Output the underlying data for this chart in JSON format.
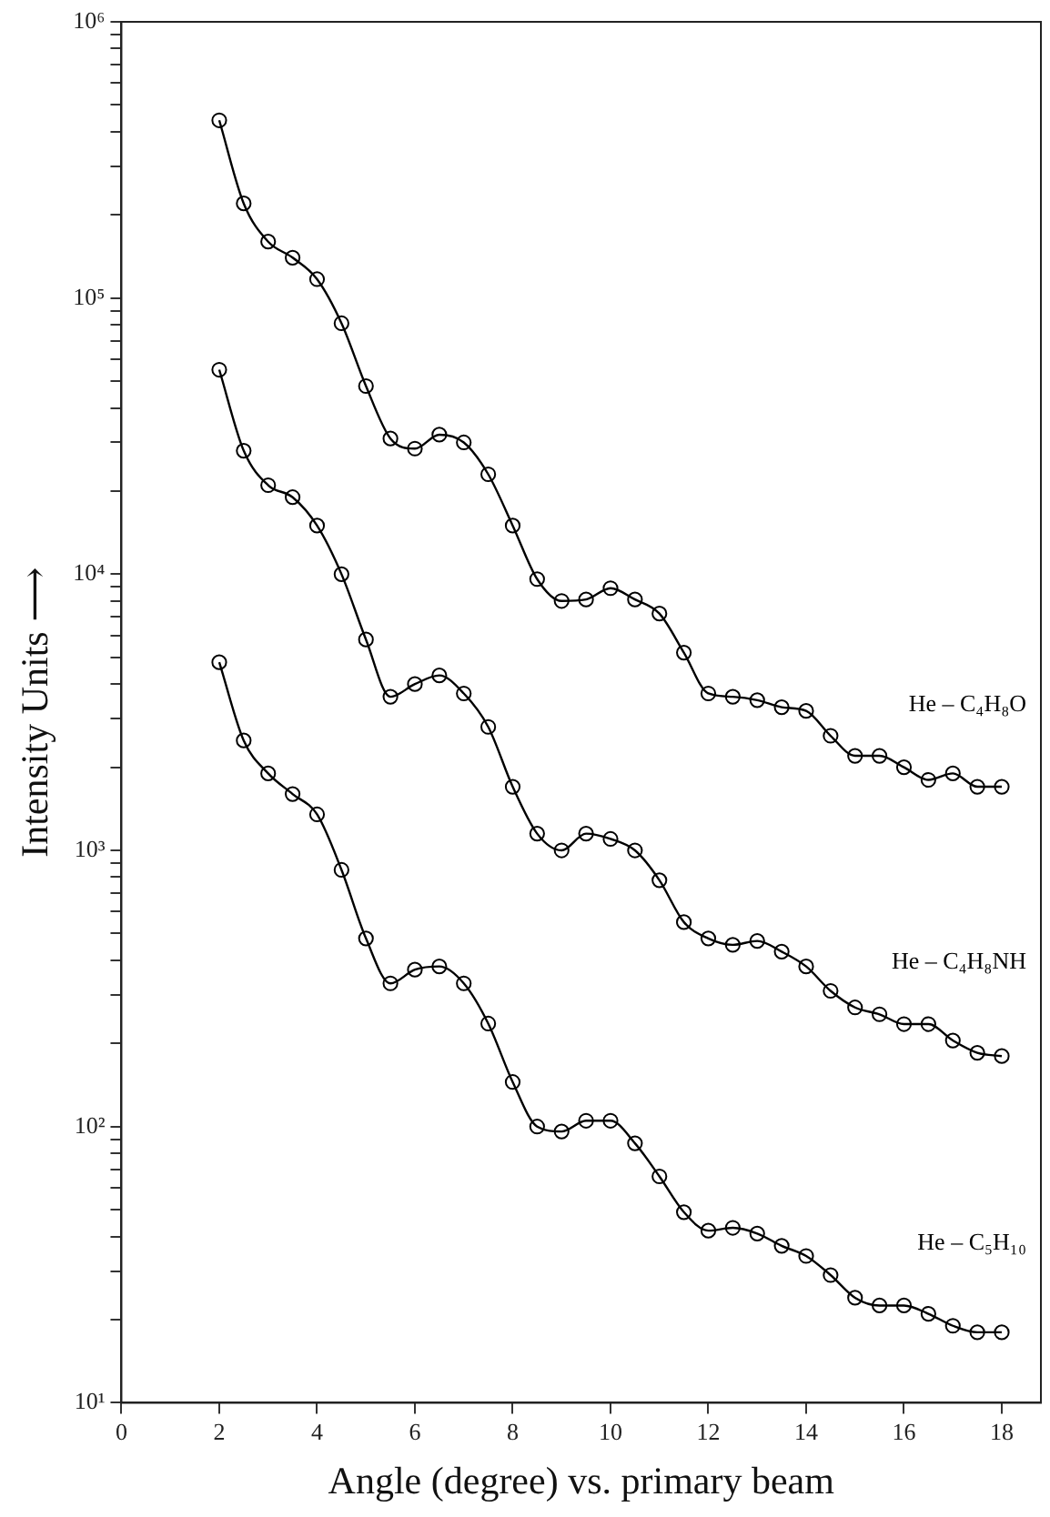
{
  "chart_data": {
    "type": "line",
    "xlabel": "Angle (degree) vs. primary beam",
    "ylabel": "Intensity Units ⟶",
    "log": "y",
    "grid": false,
    "marker": "circle",
    "line_style": "solid",
    "x": [
      2,
      2.5,
      3,
      3.5,
      4,
      4.5,
      5,
      5.5,
      6,
      6.5,
      7,
      7.5,
      8,
      8.5,
      9,
      9.5,
      10,
      10.5,
      11,
      11.5,
      12,
      12.5,
      13,
      13.5,
      14,
      14.5,
      15,
      15.5,
      16,
      16.5,
      17,
      17.5,
      18
    ],
    "xlim": [
      0,
      18.8
    ],
    "xticks": [
      0,
      2,
      4,
      6,
      8,
      10,
      12,
      14,
      16,
      18
    ],
    "ylim": [
      10,
      1000000
    ],
    "yticks": [
      {
        "value": 10,
        "label": "10¹"
      },
      {
        "value": 20,
        "label": null
      },
      {
        "value": 30,
        "label": null
      },
      {
        "value": 40,
        "label": null
      },
      {
        "value": 50,
        "label": null
      },
      {
        "value": 60,
        "label": null
      },
      {
        "value": 70,
        "label": null
      },
      {
        "value": 80,
        "label": null
      },
      {
        "value": 90,
        "label": null
      },
      {
        "value": 100,
        "label": "10²"
      },
      {
        "value": 200,
        "label": null
      },
      {
        "value": 300,
        "label": null
      },
      {
        "value": 400,
        "label": null
      },
      {
        "value": 500,
        "label": null
      },
      {
        "value": 600,
        "label": null
      },
      {
        "value": 700,
        "label": null
      },
      {
        "value": 800,
        "label": null
      },
      {
        "value": 900,
        "label": null
      },
      {
        "value": 1000,
        "label": "10³"
      },
      {
        "value": 2000,
        "label": null
      },
      {
        "value": 3000,
        "label": null
      },
      {
        "value": 4000,
        "label": null
      },
      {
        "value": 5000,
        "label": null
      },
      {
        "value": 6000,
        "label": null
      },
      {
        "value": 7000,
        "label": null
      },
      {
        "value": 8000,
        "label": null
      },
      {
        "value": 9000,
        "label": null
      },
      {
        "value": 10000,
        "label": "10⁴"
      },
      {
        "value": 20000,
        "label": null
      },
      {
        "value": 30000,
        "label": null
      },
      {
        "value": 40000,
        "label": null
      },
      {
        "value": 50000,
        "label": null
      },
      {
        "value": 60000,
        "label": null
      },
      {
        "value": 70000,
        "label": null
      },
      {
        "value": 80000,
        "label": null
      },
      {
        "value": 90000,
        "label": null
      },
      {
        "value": 100000,
        "label": "10⁵"
      },
      {
        "value": 200000,
        "label": null
      },
      {
        "value": 300000,
        "label": null
      },
      {
        "value": 400000,
        "label": null
      },
      {
        "value": 500000,
        "label": null
      },
      {
        "value": 600000,
        "label": null
      },
      {
        "value": 700000,
        "label": null
      },
      {
        "value": 800000,
        "label": null
      },
      {
        "value": 900000,
        "label": null
      },
      {
        "value": 1000000,
        "label": "10⁶"
      }
    ],
    "series": [
      {
        "name": "He – C₄H₈O",
        "color": "#000000",
        "values": [
          440000,
          220000,
          160000,
          140000,
          117000,
          81000,
          48000,
          31000,
          28500,
          32000,
          30000,
          23000,
          15000,
          9600,
          8000,
          8100,
          8900,
          8100,
          7200,
          5200,
          3700,
          3600,
          3500,
          3300,
          3200,
          2600,
          2200,
          2200,
          2000,
          1800,
          1900,
          1700,
          1700
        ]
      },
      {
        "name": "He – C₄H₈NH",
        "color": "#000000",
        "values": [
          55000,
          28000,
          21000,
          19000,
          15000,
          10000,
          5800,
          3600,
          4000,
          4300,
          3700,
          2800,
          1700,
          1150,
          1000,
          1150,
          1100,
          1000,
          780,
          550,
          480,
          455,
          470,
          430,
          380,
          310,
          270,
          255,
          235,
          235,
          205,
          185,
          180
        ]
      },
      {
        "name": "He – C₅H₁₀",
        "color": "#000000",
        "values": [
          4800,
          2500,
          1900,
          1600,
          1350,
          850,
          480,
          330,
          370,
          380,
          330,
          236,
          145,
          100,
          96,
          105,
          105,
          87,
          66,
          49,
          42,
          43,
          41,
          37,
          34,
          29,
          24,
          22.5,
          22.5,
          21,
          19,
          18,
          18
        ]
      }
    ]
  }
}
